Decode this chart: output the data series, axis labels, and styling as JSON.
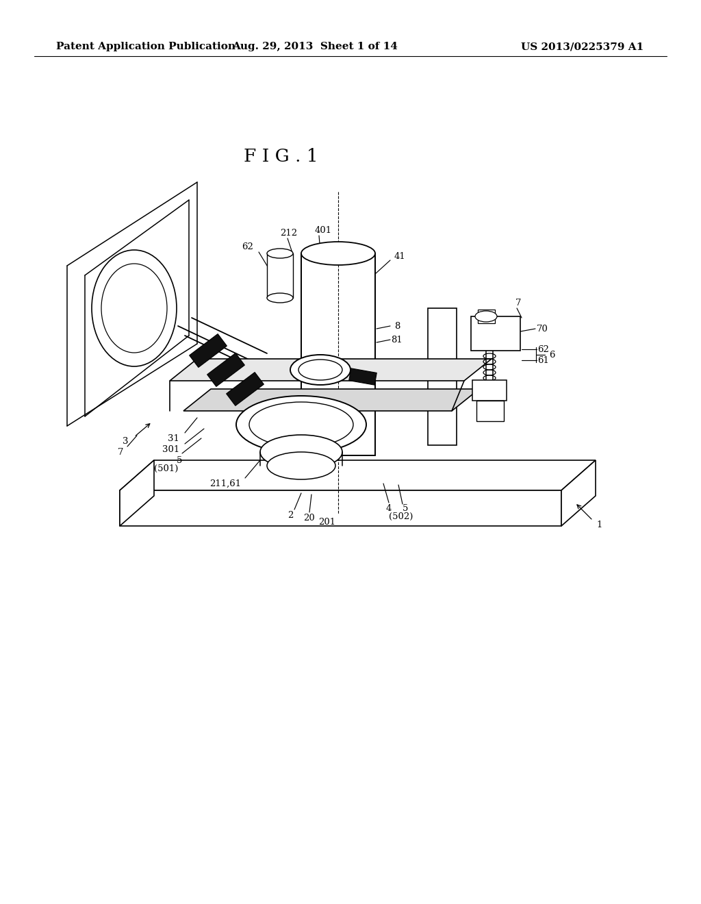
{
  "background_color": "#ffffff",
  "header_left": "Patent Application Publication",
  "header_center": "Aug. 29, 2013  Sheet 1 of 14",
  "header_right": "US 2013/0225379 A1",
  "fig_label": "F I G . 1",
  "header_fontsize": 11,
  "label_fontsize": 9.5,
  "fig_label_fontsize": 19,
  "page_width": 10.24,
  "page_height": 13.2,
  "dpi": 100
}
